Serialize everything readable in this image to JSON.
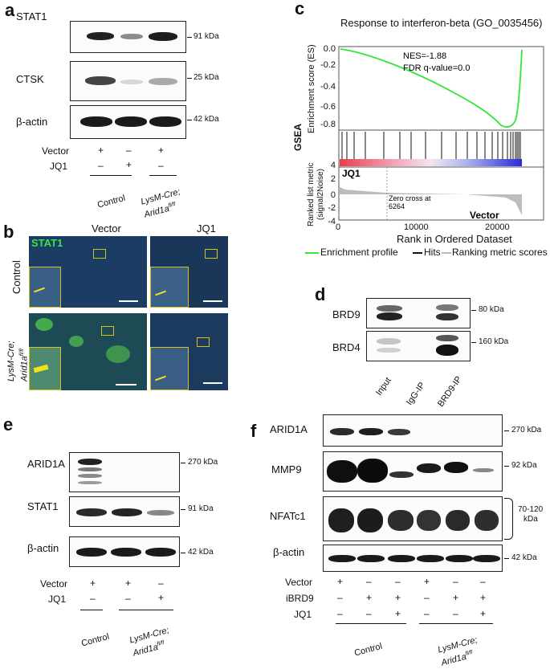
{
  "panel_labels": {
    "a": "a",
    "b": "b",
    "c": "c",
    "d": "d",
    "e": "e",
    "f": "f"
  },
  "panel_a": {
    "blots": [
      {
        "label": "STAT1",
        "kda": "91 kDa"
      },
      {
        "label": "CTSK",
        "kda": "25 kDa"
      },
      {
        "label": "β-actin",
        "kda": "42 kDa"
      }
    ],
    "rows": [
      {
        "label": "Vector",
        "marks": [
          "+",
          "–",
          "+"
        ]
      },
      {
        "label": "JQ1",
        "marks": [
          "–",
          "+",
          "–"
        ]
      }
    ],
    "group_control": "Control",
    "group_lysm_line1": "LysM-Cre;",
    "group_lysm_line2": "Arid1a",
    "group_lysm_sup": "fl/fl"
  },
  "panel_b": {
    "col_vector": "Vector",
    "col_jq1": "JQ1",
    "row_control": "Control",
    "row_lysm_line1": "LysM-Cre;",
    "row_lysm_line2": "Arid1a",
    "row_lysm_sup": "fl/fl",
    "stain": "STAT1",
    "stain_color": "#3ee04a",
    "inset_color": "#d4c21a",
    "arrow_color": "#f2e21a"
  },
  "panel_c": {
    "title": "Response to interferon-beta (GO_0035456)",
    "gsea_label": "GSEA",
    "es_ylabel": "Enrichment score (ES)",
    "nes": "NES=-1.88",
    "fdr": "FDR q-value=0.0",
    "rank_ylabel_line1": "Ranked list metric",
    "rank_ylabel_line2": "(signal2Noise)",
    "jq1_label": "JQ1",
    "vector_label": "Vector",
    "zero_cross_line1": "Zero cross at",
    "zero_cross_line2": "6264",
    "xlabel": "Rank in Ordered Dataset",
    "es_ticks": [
      "0.0",
      "-0.2",
      "-0.4",
      "-0.6",
      "-0.8"
    ],
    "rank_ticks": [
      "4",
      "2",
      "0",
      "-2",
      "-4"
    ],
    "x_ticks": [
      "0",
      "10000",
      "20000"
    ],
    "legend": {
      "enrichment": "Enrichment profile",
      "hits": "Hits",
      "ranking": "Ranking metric scores"
    },
    "curve_color": "#33e633"
  },
  "panel_d": {
    "blots": [
      {
        "label": "BRD9",
        "kda": "80 kDa"
      },
      {
        "label": "BRD4",
        "kda": "160 kDa"
      }
    ],
    "lanes": [
      "Input",
      "IgG-IP",
      "BRD9-IP"
    ]
  },
  "panel_e": {
    "blots": [
      {
        "label": "ARID1A",
        "kda": "270 kDa"
      },
      {
        "label": "STAT1",
        "kda": "91 kDa"
      },
      {
        "label": "β-actin",
        "kda": "42 kDa"
      }
    ],
    "rows": [
      {
        "label": "Vector",
        "marks": [
          "+",
          "+",
          "–"
        ]
      },
      {
        "label": "JQ1",
        "marks": [
          "–",
          "–",
          "+"
        ]
      }
    ],
    "group_control": "Control",
    "group_lysm_line1": "LysM-Cre;",
    "group_lysm_line2": "Arid1a",
    "group_lysm_sup": "fl/fl"
  },
  "panel_f": {
    "blots": [
      {
        "label": "ARID1A",
        "kda": "270 kDa"
      },
      {
        "label": "MMP9",
        "kda": "92 kDa"
      },
      {
        "label": "NFATc1",
        "kda_line1": "70-120",
        "kda_line2": "kDa"
      },
      {
        "label": "β-actin",
        "kda": "42 kDa"
      }
    ],
    "rows": [
      {
        "label": "Vector",
        "marks": [
          "+",
          "–",
          "–",
          "+",
          "–",
          "–"
        ]
      },
      {
        "label": "iBRD9",
        "marks": [
          "–",
          "+",
          "+",
          "–",
          "+",
          "+"
        ]
      },
      {
        "label": "JQ1",
        "marks": [
          "–",
          "–",
          "+",
          "–",
          "–",
          "+"
        ]
      }
    ],
    "group_control": "Control",
    "group_lysm_line1": "LysM-Cre;",
    "group_lysm_line2": "Arid1a",
    "group_lysm_sup": "fl/fl"
  }
}
